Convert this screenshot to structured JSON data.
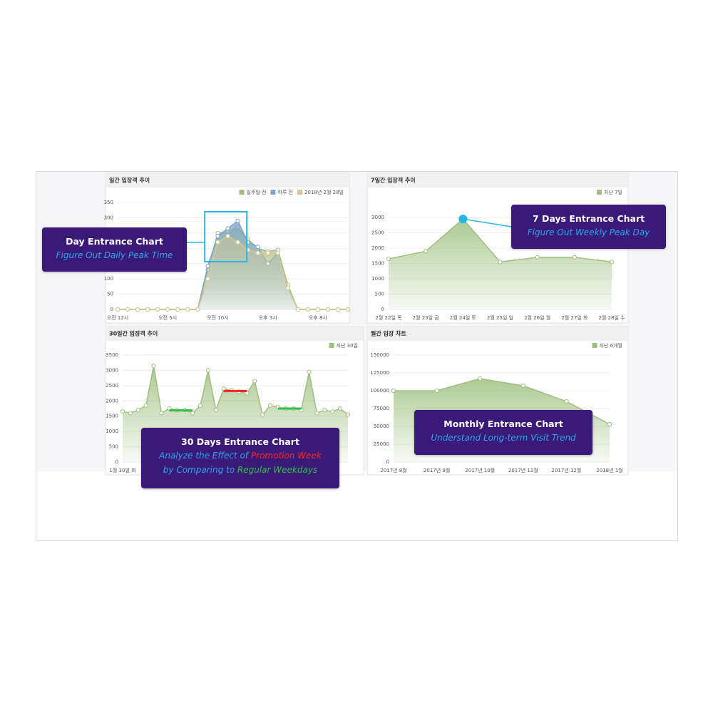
{
  "chart_data": [
    {
      "type": "line",
      "title": "일간 입장객 추이",
      "categories": [
        "오전 12시",
        null,
        null,
        null,
        null,
        "오전 5시",
        null,
        null,
        null,
        null,
        "오전 10시",
        null,
        null,
        null,
        null,
        "오후 3시",
        null,
        null,
        null,
        null,
        "오후 8시",
        null,
        null,
        null
      ],
      "series": [
        {
          "name": "일주일 전",
          "color": "#9ebf7f",
          "values": [
            0,
            0,
            0,
            0,
            0,
            0,
            0,
            0,
            0,
            130,
            250,
            255,
            270,
            230,
            200,
            190,
            195,
            80,
            0,
            0,
            0,
            0,
            0,
            0
          ]
        },
        {
          "name": "하루 전",
          "color": "#7fa7cf",
          "values": [
            0,
            0,
            0,
            0,
            0,
            0,
            0,
            0,
            0,
            142,
            240,
            265,
            290,
            220,
            205,
            150,
            185,
            70,
            0,
            0,
            0,
            0,
            0,
            0
          ]
        },
        {
          "name": "2018년 2월 28일",
          "color": "#d9c78c",
          "values": [
            0,
            0,
            0,
            0,
            0,
            0,
            0,
            0,
            0,
            100,
            220,
            240,
            220,
            195,
            185,
            185,
            185,
            70,
            0,
            0,
            0,
            0,
            0,
            0
          ]
        }
      ],
      "ylim": [
        0,
        350
      ],
      "yticks": [
        0,
        50,
        100,
        150,
        200,
        250,
        300,
        350
      ],
      "grid": true
    },
    {
      "type": "line",
      "title": "7일간 입장객 추이",
      "categories": [
        "2월 22일 목",
        "2월 23일 금",
        "2월 24일 토",
        "2월 25일 일",
        "2월 26일 월",
        "2월 27일 화",
        "2월 28일 수"
      ],
      "series": [
        {
          "name": "지난 7일",
          "color": "#9ebf7f",
          "values": [
            1650,
            1900,
            2950,
            1550,
            1700,
            1700,
            1550
          ]
        }
      ],
      "ylim": [
        0,
        3000
      ],
      "yticks": [
        0,
        500,
        1000,
        1500,
        2000,
        2500,
        3000
      ],
      "grid": true
    },
    {
      "type": "line",
      "title": "30일간 입장객 추이",
      "categories": [
        "1월 30일 화",
        null,
        null,
        null,
        null,
        null,
        null,
        null,
        null,
        null,
        null,
        null,
        null,
        null,
        null,
        null,
        null,
        null,
        null,
        null,
        null,
        null,
        null,
        null,
        null,
        null,
        null,
        null,
        null,
        null
      ],
      "series": [
        {
          "name": "지난 30일",
          "color": "#9ebf7f",
          "values": [
            1650,
            1600,
            1700,
            1850,
            3150,
            1600,
            1750,
            1700,
            1700,
            1600,
            1850,
            3000,
            1700,
            2400,
            2350,
            2300,
            2250,
            2650,
            1550,
            1850,
            1800,
            1750,
            1750,
            1700,
            2950,
            1600,
            1700,
            1650,
            1750,
            1550
          ]
        }
      ],
      "ylim": [
        0,
        3500
      ],
      "yticks": [
        0,
        500,
        1000,
        1500,
        2000,
        2500,
        3000,
        3500
      ],
      "grid": true
    },
    {
      "type": "line",
      "title": "월간 입장 차트",
      "categories": [
        "2017년 8월",
        "2017년 9월",
        "2017년 10월",
        "2017년 11월",
        "2017년 12월",
        "2018년 1월"
      ],
      "series": [
        {
          "name": "지난 6개월",
          "color": "#9ebf7f",
          "values": [
            100000,
            100000,
            117000,
            107000,
            85000,
            53000
          ]
        }
      ],
      "ylim": [
        0,
        150000
      ],
      "yticks": [
        0,
        25000,
        50000,
        75000,
        100000,
        125000,
        150000
      ],
      "grid": true
    }
  ],
  "callouts": [
    {
      "title": "Day Entrance Chart",
      "subtitle": "Figure Out Daily Peak Time"
    },
    {
      "title": "7 Days Entrance Chart",
      "subtitle": "Figure Out Weekly Peak Day"
    },
    {
      "title": "30 Days Entrance Chart",
      "subtitle_parts": [
        "Analyze the Effect of",
        "Promotion Week",
        "by Comparing to",
        "Regular Weekdays"
      ]
    },
    {
      "title": "Monthly Entrance Chart",
      "subtitle": "Understand Long-term Visit Trend"
    }
  ]
}
